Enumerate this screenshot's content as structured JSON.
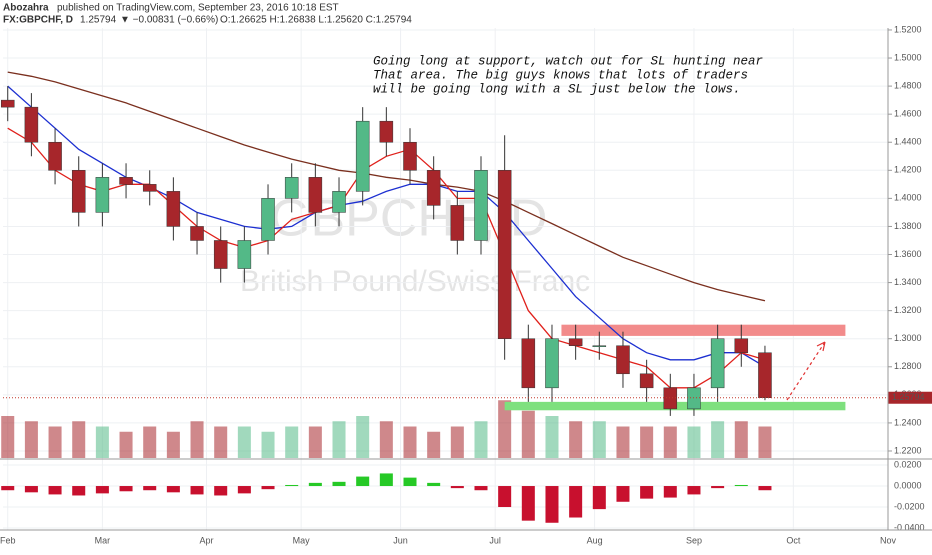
{
  "chart_data": {
    "type": "candlestick",
    "header": {
      "author": "Abozahra",
      "published": "published on TradingView.com, September 23, 2016 10:18 EST",
      "symbol": "FX:GBPCHF, D",
      "last": "1.25794",
      "change": "▼ −0.00831 (−0.66%)",
      "ohlc": "O:1.26625 H:1.26838 L:1.25620 C:1.25794"
    },
    "watermark": [
      "GBPCHF, D",
      "British Pound/Swiss Franc"
    ],
    "annotation": [
      "Going long at support, watch out for SL hunting near",
      "That area. The big guys knows that lots of traders",
      "will be going long with a SL just below the lows."
    ],
    "x": [
      0,
      5,
      10,
      15,
      20,
      25,
      30,
      35,
      40,
      45,
      50,
      55,
      60,
      65,
      70,
      75,
      80,
      85,
      90,
      95,
      100,
      105,
      110,
      115,
      120,
      125,
      130,
      135,
      140,
      145,
      150,
      155,
      160
    ],
    "open": [
      1.47,
      1.465,
      1.44,
      1.42,
      1.39,
      1.415,
      1.41,
      1.405,
      1.38,
      1.37,
      1.35,
      1.37,
      1.4,
      1.415,
      1.39,
      1.405,
      1.455,
      1.44,
      1.42,
      1.395,
      1.37,
      1.42,
      1.3,
      1.265,
      1.3,
      1.295,
      1.295,
      1.275,
      1.265,
      1.25,
      1.265,
      1.3,
      1.29
    ],
    "high": [
      1.48,
      1.475,
      1.45,
      1.43,
      1.425,
      1.425,
      1.42,
      1.415,
      1.39,
      1.38,
      1.38,
      1.41,
      1.425,
      1.425,
      1.415,
      1.465,
      1.465,
      1.45,
      1.43,
      1.405,
      1.43,
      1.445,
      1.31,
      1.31,
      1.31,
      1.305,
      1.305,
      1.285,
      1.275,
      1.275,
      1.31,
      1.31,
      1.295
    ],
    "low": [
      1.455,
      1.43,
      1.41,
      1.38,
      1.38,
      1.4,
      1.395,
      1.37,
      1.36,
      1.34,
      1.34,
      1.36,
      1.39,
      1.38,
      1.38,
      1.395,
      1.43,
      1.41,
      1.385,
      1.36,
      1.36,
      1.285,
      1.255,
      1.255,
      1.285,
      1.285,
      1.265,
      1.255,
      1.245,
      1.245,
      1.255,
      1.28,
      1.2562
    ],
    "close": [
      1.465,
      1.44,
      1.42,
      1.39,
      1.415,
      1.41,
      1.405,
      1.38,
      1.37,
      1.35,
      1.37,
      1.4,
      1.415,
      1.39,
      1.405,
      1.455,
      1.44,
      1.42,
      1.395,
      1.37,
      1.42,
      1.3,
      1.265,
      1.3,
      1.295,
      1.295,
      1.275,
      1.265,
      1.25,
      1.265,
      1.3,
      1.29,
      1.25794
    ],
    "up_color": "#53b987",
    "down_color": "#a7262b",
    "ma": [
      {
        "color": "#7a2f1e",
        "values": [
          1.49,
          1.487,
          1.483,
          1.478,
          1.473,
          1.468,
          1.462,
          1.456,
          1.45,
          1.444,
          1.438,
          1.433,
          1.428,
          1.424,
          1.42,
          1.418,
          1.415,
          1.413,
          1.41,
          1.408,
          1.405,
          1.398,
          1.39,
          1.382,
          1.374,
          1.366,
          1.358,
          1.352,
          1.346,
          1.34,
          1.335,
          1.331,
          1.327
        ]
      },
      {
        "color": "#1c2fd1",
        "values": [
          1.48,
          1.465,
          1.45,
          1.435,
          1.425,
          1.415,
          1.408,
          1.4,
          1.39,
          1.385,
          1.38,
          1.378,
          1.38,
          1.39,
          1.395,
          1.398,
          1.405,
          1.41,
          1.41,
          1.405,
          1.405,
          1.39,
          1.37,
          1.35,
          1.33,
          1.315,
          1.3,
          1.29,
          1.285,
          1.285,
          1.29,
          1.29,
          1.28
        ]
      },
      {
        "color": "#e0201b",
        "values": [
          1.45,
          1.44,
          1.42,
          1.41,
          1.405,
          1.41,
          1.41,
          1.395,
          1.38,
          1.37,
          1.365,
          1.37,
          1.385,
          1.39,
          1.395,
          1.42,
          1.43,
          1.435,
          1.42,
          1.4,
          1.4,
          1.36,
          1.32,
          1.3,
          1.295,
          1.29,
          1.285,
          1.28,
          1.265,
          1.265,
          1.275,
          1.29,
          1.285
        ]
      }
    ],
    "volume": [
      40,
      35,
      30,
      35,
      30,
      25,
      30,
      25,
      35,
      30,
      30,
      25,
      30,
      30,
      35,
      40,
      35,
      30,
      25,
      30,
      35,
      55,
      45,
      40,
      35,
      35,
      30,
      30,
      30,
      30,
      35,
      35,
      30
    ],
    "vlim": [
      0,
      100
    ],
    "macd": [
      -0.004,
      -0.006,
      -0.008,
      -0.009,
      -0.007,
      -0.005,
      -0.004,
      -0.006,
      -0.008,
      -0.009,
      -0.007,
      -0.003,
      0.001,
      0.003,
      0.004,
      0.009,
      0.012,
      0.008,
      0.003,
      -0.002,
      -0.004,
      -0.02,
      -0.033,
      -0.035,
      -0.03,
      -0.022,
      -0.015,
      -0.012,
      -0.011,
      -0.008,
      -0.002,
      0.001,
      -0.004
    ],
    "macd_pos_color": "#26c926",
    "macd_neg_color": "#c8102e",
    "macd_ylim": [
      -0.0419,
      0.0248
    ],
    "macd_yticks": [
      {
        "value": 0.02,
        "label": "0.0200"
      },
      {
        "value": 0,
        "label": "0.0000"
      },
      {
        "value": -0.02,
        "label": "-0.0200"
      },
      {
        "value": -0.04,
        "label": "-0.0400"
      }
    ],
    "ylim": [
      1.215,
      1.5214
    ],
    "yticks": [
      {
        "value": 1.22,
        "label": "1.2200"
      },
      {
        "value": 1.24,
        "label": "1.2400"
      },
      {
        "value": 1.26,
        "label": "1.2600"
      },
      {
        "value": 1.28,
        "label": "1.2800"
      },
      {
        "value": 1.3,
        "label": "1.3000"
      },
      {
        "value": 1.32,
        "label": "1.3200"
      },
      {
        "value": 1.34,
        "label": "1.3400"
      },
      {
        "value": 1.36,
        "label": "1.3600"
      },
      {
        "value": 1.38,
        "label": "1.3800"
      },
      {
        "value": 1.4,
        "label": "1.4000"
      },
      {
        "value": 1.42,
        "label": "1.4200"
      },
      {
        "value": 1.44,
        "label": "1.4400"
      },
      {
        "value": 1.46,
        "label": "1.4600"
      },
      {
        "value": 1.48,
        "label": "1.4800"
      },
      {
        "value": 1.5,
        "label": "1.5000"
      },
      {
        "value": 1.52,
        "label": "1.5200"
      }
    ],
    "xlim": [
      -1,
      186
    ],
    "xticks": [
      {
        "value": 0,
        "label": "Feb"
      },
      {
        "value": 20,
        "label": "Mar"
      },
      {
        "value": 42,
        "label": "Apr"
      },
      {
        "value": 62,
        "label": "May"
      },
      {
        "value": 83,
        "label": "Jun"
      },
      {
        "value": 103,
        "label": "Jul"
      },
      {
        "value": 124,
        "label": "Aug"
      },
      {
        "value": 145,
        "label": "Sep"
      },
      {
        "value": 166,
        "label": "Oct"
      },
      {
        "value": 186,
        "label": "Nov"
      }
    ],
    "last_price": 1.25794,
    "zones": [
      {
        "from": 117,
        "to": 177,
        "low": 1.302,
        "high": 1.31,
        "color": "#f28b8b"
      },
      {
        "from": 105,
        "to": 177,
        "low": 1.249,
        "high": 1.255,
        "color": "#7ee07e"
      }
    ]
  }
}
